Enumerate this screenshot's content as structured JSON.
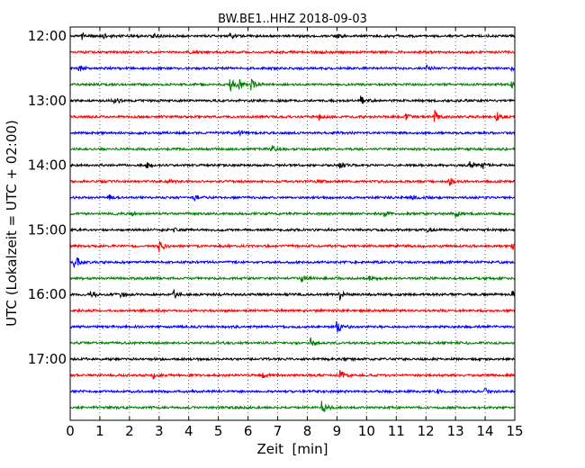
{
  "chart_data": {
    "type": "line",
    "title": "BW.BE1..HHZ 2018-09-03",
    "xlabel": "Zeit  [min]",
    "ylabel": "UTC (Lokalzeit = UTC + 02:00)",
    "xlim": [
      0,
      15
    ],
    "x_ticks": [
      0,
      1,
      2,
      3,
      4,
      5,
      6,
      7,
      8,
      9,
      10,
      11,
      12,
      13,
      14,
      15
    ],
    "x_tick_labels": [
      "0",
      "1",
      "2",
      "3",
      "4",
      "5",
      "6",
      "7",
      "8",
      "9",
      "10",
      "11",
      "12",
      "13",
      "14",
      "15"
    ],
    "y_tick_labels": [
      "12:00",
      "13:00",
      "14:00",
      "15:00",
      "16:00",
      "17:00"
    ],
    "x_grid": "dotted",
    "color_cycle": [
      "#000000",
      "#ff0000",
      "#0000ff",
      "#008000"
    ],
    "series": [
      {
        "start": "12:00",
        "color": "#000000",
        "events": [
          {
            "t": 0.4,
            "a": 0.35
          },
          {
            "t": 1.1,
            "a": 0.25
          },
          {
            "t": 2.8,
            "a": 0.3
          },
          {
            "t": 5.4,
            "a": 0.2
          },
          {
            "t": 9.0,
            "a": 0.2
          }
        ]
      },
      {
        "start": "12:15",
        "color": "#ff0000",
        "events": [
          {
            "t": 4.0,
            "a": 0.2
          },
          {
            "t": 8.5,
            "a": 0.15
          }
        ]
      },
      {
        "start": "12:30",
        "color": "#0000ff",
        "events": [
          {
            "t": 0.3,
            "a": 0.3
          },
          {
            "t": 12.0,
            "a": 0.35
          },
          {
            "t": 14.9,
            "a": 0.25
          }
        ]
      },
      {
        "start": "12:45",
        "color": "#008000",
        "events": [
          {
            "t": 5.4,
            "a": 0.8
          },
          {
            "t": 5.7,
            "a": 0.6
          },
          {
            "t": 6.1,
            "a": 0.5
          },
          {
            "t": 14.9,
            "a": 0.3
          }
        ]
      },
      {
        "start": "13:00",
        "color": "#000000",
        "events": [
          {
            "t": 1.5,
            "a": 0.35
          },
          {
            "t": 9.8,
            "a": 0.6
          }
        ]
      },
      {
        "start": "13:15",
        "color": "#ff0000",
        "events": [
          {
            "t": 8.4,
            "a": 0.35
          },
          {
            "t": 11.3,
            "a": 0.45
          },
          {
            "t": 12.3,
            "a": 0.7
          },
          {
            "t": 14.4,
            "a": 0.55
          }
        ]
      },
      {
        "start": "13:30",
        "color": "#0000ff",
        "events": [
          {
            "t": 5.7,
            "a": 0.3
          },
          {
            "t": 8.9,
            "a": 0.2
          }
        ]
      },
      {
        "start": "13:45",
        "color": "#008000",
        "events": [
          {
            "t": 6.8,
            "a": 0.35
          }
        ]
      },
      {
        "start": "14:00",
        "color": "#000000",
        "events": [
          {
            "t": 2.6,
            "a": 0.35
          },
          {
            "t": 9.1,
            "a": 0.3
          },
          {
            "t": 13.5,
            "a": 0.45
          },
          {
            "t": 13.9,
            "a": 0.3
          }
        ]
      },
      {
        "start": "14:15",
        "color": "#ff0000",
        "events": [
          {
            "t": 3.3,
            "a": 0.25
          },
          {
            "t": 8.3,
            "a": 0.25
          },
          {
            "t": 12.8,
            "a": 0.4
          }
        ]
      },
      {
        "start": "14:30",
        "color": "#0000ff",
        "events": [
          {
            "t": 1.3,
            "a": 0.3
          },
          {
            "t": 4.2,
            "a": 0.35
          },
          {
            "t": 11.5,
            "a": 0.35
          }
        ]
      },
      {
        "start": "14:45",
        "color": "#008000",
        "events": [
          {
            "t": 2.1,
            "a": 0.3
          },
          {
            "t": 10.6,
            "a": 0.3
          },
          {
            "t": 13.0,
            "a": 0.3
          }
        ]
      },
      {
        "start": "15:00",
        "color": "#000000",
        "events": [
          {
            "t": 3.5,
            "a": 0.2
          },
          {
            "t": 12.0,
            "a": 0.2
          }
        ]
      },
      {
        "start": "15:15",
        "color": "#ff0000",
        "events": [
          {
            "t": 3.0,
            "a": 0.65
          },
          {
            "t": 14.9,
            "a": 0.4
          }
        ]
      },
      {
        "start": "15:30",
        "color": "#0000ff",
        "events": [
          {
            "t": 0.15,
            "a": 1.0
          }
        ]
      },
      {
        "start": "15:45",
        "color": "#008000",
        "events": [
          {
            "t": 7.8,
            "a": 0.35
          },
          {
            "t": 10.1,
            "a": 0.3
          }
        ]
      },
      {
        "start": "16:00",
        "color": "#000000",
        "events": [
          {
            "t": 0.7,
            "a": 0.45
          },
          {
            "t": 1.7,
            "a": 0.3
          },
          {
            "t": 3.5,
            "a": 0.5
          },
          {
            "t": 9.1,
            "a": 0.5
          },
          {
            "t": 14.9,
            "a": 0.5
          }
        ]
      },
      {
        "start": "16:15",
        "color": "#ff0000",
        "events": []
      },
      {
        "start": "16:30",
        "color": "#0000ff",
        "events": [
          {
            "t": 9.0,
            "a": 0.8
          }
        ]
      },
      {
        "start": "16:45",
        "color": "#008000",
        "events": [
          {
            "t": 8.1,
            "a": 0.7
          }
        ]
      },
      {
        "start": "17:00",
        "color": "#000000",
        "events": []
      },
      {
        "start": "17:15",
        "color": "#ff0000",
        "events": [
          {
            "t": 2.8,
            "a": 0.3
          },
          {
            "t": 6.5,
            "a": 0.3
          },
          {
            "t": 9.1,
            "a": 0.6
          }
        ]
      },
      {
        "start": "17:30",
        "color": "#0000ff",
        "events": [
          {
            "t": 12.4,
            "a": 0.2
          },
          {
            "t": 14.0,
            "a": 0.3
          }
        ]
      },
      {
        "start": "17:45",
        "color": "#008000",
        "events": [
          {
            "t": 8.5,
            "a": 1.0
          }
        ]
      }
    ]
  }
}
